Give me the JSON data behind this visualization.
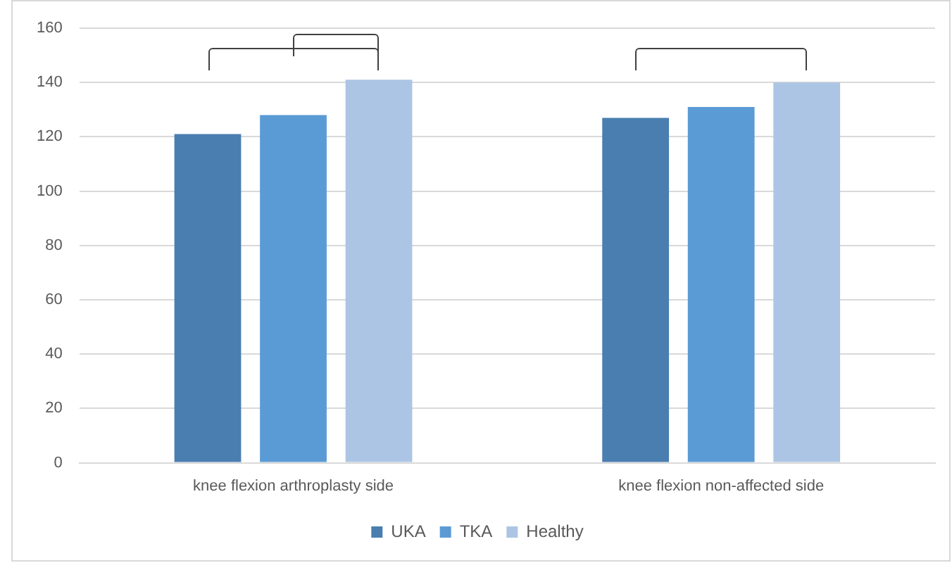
{
  "chart_data": {
    "type": "bar",
    "categories": [
      "knee flexion arthroplasty side",
      "knee flexion non-affected side"
    ],
    "series": [
      {
        "name": "UKA",
        "color": "#4a7eb0",
        "values": [
          121,
          127
        ]
      },
      {
        "name": "TKA",
        "color": "#5b9bd5",
        "values": [
          128,
          131
        ]
      },
      {
        "name": "Healthy",
        "color": "#adc5e4",
        "values": [
          141,
          140
        ]
      }
    ],
    "ylim": [
      0,
      160
    ],
    "yticks": [
      0,
      20,
      40,
      60,
      80,
      100,
      120,
      140,
      160
    ],
    "grid": "y",
    "legend": "bottom"
  }
}
